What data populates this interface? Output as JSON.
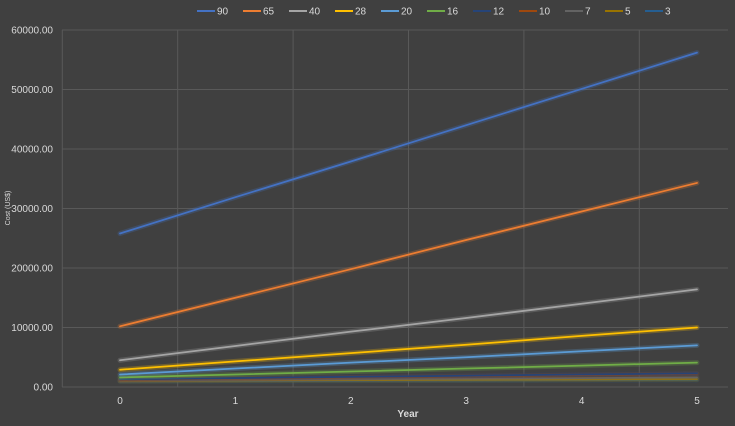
{
  "chart_data": {
    "type": "line",
    "title": "",
    "xlabel": "Year",
    "ylabel": "Cost (US$)",
    "x": [
      0,
      1,
      2,
      3,
      4,
      5
    ],
    "xticks": [
      "0",
      "1",
      "2",
      "3",
      "4",
      "5"
    ],
    "yticks": [
      "0.00",
      "10000.00",
      "20000.00",
      "30000.00",
      "40000.00",
      "50000.00",
      "60000.00"
    ],
    "ylim": [
      0,
      60000
    ],
    "grid": true,
    "legend_position": "top",
    "series": [
      {
        "name": "90",
        "color": "#4472c4",
        "values": [
          25800,
          31900,
          37900,
          44000,
          50100,
          56200
        ]
      },
      {
        "name": "65",
        "color": "#ed7d31",
        "values": [
          10200,
          15000,
          19800,
          24700,
          29500,
          34300
        ]
      },
      {
        "name": "40",
        "color": "#a5a5a5",
        "values": [
          4500,
          6900,
          9300,
          11600,
          14000,
          16400
        ]
      },
      {
        "name": "28",
        "color": "#ffc000",
        "values": [
          2900,
          4300,
          5700,
          7100,
          8600,
          10000
        ]
      },
      {
        "name": "20",
        "color": "#5b9bd5",
        "values": [
          2100,
          3100,
          4100,
          5000,
          6000,
          7000
        ]
      },
      {
        "name": "16",
        "color": "#70ad47",
        "values": [
          1600,
          2100,
          2600,
          3100,
          3600,
          4100
        ]
      },
      {
        "name": "12",
        "color": "#264478",
        "values": [
          1300,
          1500,
          1700,
          1900,
          2100,
          2300
        ]
      },
      {
        "name": "10",
        "color": "#9e480e",
        "values": [
          1200,
          1400,
          1600,
          1800,
          2000,
          2200
        ]
      },
      {
        "name": "7",
        "color": "#636363",
        "values": [
          1100,
          1200,
          1300,
          1400,
          1500,
          1600
        ]
      },
      {
        "name": "5",
        "color": "#997300",
        "values": [
          1000,
          1100,
          1150,
          1200,
          1250,
          1300
        ]
      },
      {
        "name": "3",
        "color": "#255e91",
        "values": [
          950,
          1000,
          1050,
          1100,
          1150,
          1200
        ]
      }
    ]
  }
}
